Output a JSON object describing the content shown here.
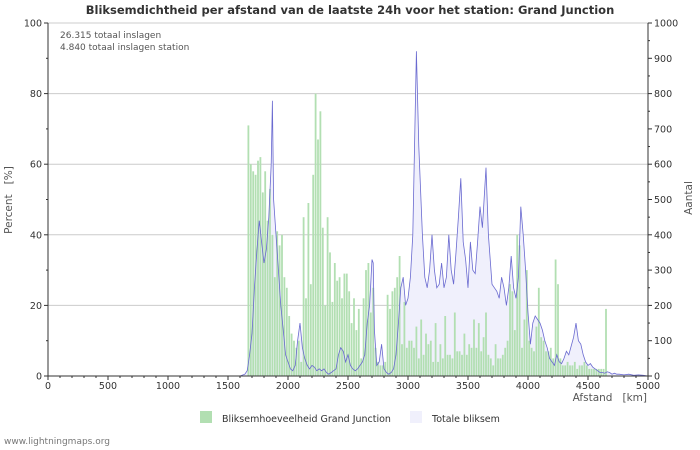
{
  "chart_data": {
    "type": "bar+area",
    "title": "Bliksemdichtheid per afstand van de laatste 24h voor het station: Grand Junction",
    "annotations": [
      "26.315 totaal inslagen",
      "4.840 totaal inslagen station"
    ],
    "xlabel": "Afstand   [km]",
    "ylabel_left": "Percent   [%]",
    "ylabel_right": "Aantal",
    "xlim": [
      0,
      5000
    ],
    "ylim_left": [
      0,
      100
    ],
    "ylim_right": [
      0,
      1000
    ],
    "x_ticks": [
      "0",
      "500",
      "1000",
      "1500",
      "2000",
      "2500",
      "3000",
      "3500",
      "4000",
      "4500",
      "5000"
    ],
    "y_ticks_left": [
      "0",
      "20",
      "40",
      "60",
      "80",
      "100"
    ],
    "y_ticks_right": [
      "0",
      "100",
      "200",
      "300",
      "400",
      "500",
      "600",
      "700",
      "800",
      "900",
      "1000"
    ],
    "grid": true,
    "legend_position": "bottom",
    "colors": {
      "bars": "#b2dfb2",
      "area_fill": "#f0f0fc",
      "area_line": "#6a6ad0",
      "grid": "#cccccc",
      "axis": "#333333"
    },
    "series": [
      {
        "name": "Bliksemhoeveelheid Grand Junction",
        "type": "bar",
        "axis": "left",
        "bin_width_km": 20,
        "x_start": 1660,
        "values": [
          71,
          60,
          58,
          57,
          61,
          62,
          52,
          58,
          44,
          53,
          40,
          28,
          41,
          37,
          40,
          28,
          25,
          17,
          12,
          10,
          8,
          10,
          4,
          45,
          22,
          49,
          26,
          57,
          80,
          67,
          75,
          42,
          20,
          45,
          35,
          21,
          32,
          27,
          28,
          22,
          29,
          29,
          24,
          15,
          22,
          13,
          19,
          5,
          22,
          30,
          32,
          18,
          25,
          8,
          4,
          3,
          3,
          4,
          23,
          19,
          24,
          25,
          28,
          34,
          9,
          21,
          8,
          10,
          10,
          8,
          14,
          5,
          16,
          6,
          12,
          9,
          10,
          4,
          15,
          4,
          9,
          5,
          17,
          6,
          6,
          5,
          18,
          7,
          7,
          6,
          12,
          6,
          9,
          8,
          16,
          8,
          15,
          7,
          11,
          18,
          6,
          5,
          3,
          9,
          5,
          5,
          6,
          8,
          10,
          26,
          24,
          13,
          40,
          37,
          8,
          16,
          30,
          10,
          8,
          7,
          14,
          25,
          11,
          10,
          7,
          7,
          8,
          5,
          33,
          26,
          5,
          3,
          3,
          4,
          3,
          3,
          4,
          2,
          3,
          3,
          4,
          3,
          2,
          2,
          2,
          2,
          2,
          2,
          2,
          19
        ],
        "value_unit": "%"
      },
      {
        "name": "Totale bliksem",
        "type": "area",
        "axis": "right",
        "points": [
          [
            1600,
            0
          ],
          [
            1640,
            5
          ],
          [
            1660,
            15
          ],
          [
            1680,
            60
          ],
          [
            1700,
            120
          ],
          [
            1720,
            250
          ],
          [
            1740,
            350
          ],
          [
            1760,
            440
          ],
          [
            1780,
            380
          ],
          [
            1800,
            320
          ],
          [
            1820,
            360
          ],
          [
            1840,
            450
          ],
          [
            1860,
            600
          ],
          [
            1870,
            780
          ],
          [
            1880,
            500
          ],
          [
            1900,
            400
          ],
          [
            1920,
            300
          ],
          [
            1940,
            200
          ],
          [
            1960,
            130
          ],
          [
            1980,
            60
          ],
          [
            2000,
            40
          ],
          [
            2020,
            20
          ],
          [
            2040,
            15
          ],
          [
            2060,
            30
          ],
          [
            2080,
            100
          ],
          [
            2100,
            150
          ],
          [
            2120,
            80
          ],
          [
            2140,
            50
          ],
          [
            2160,
            30
          ],
          [
            2180,
            20
          ],
          [
            2200,
            30
          ],
          [
            2220,
            25
          ],
          [
            2240,
            15
          ],
          [
            2260,
            20
          ],
          [
            2280,
            15
          ],
          [
            2300,
            20
          ],
          [
            2320,
            10
          ],
          [
            2340,
            5
          ],
          [
            2360,
            10
          ],
          [
            2380,
            15
          ],
          [
            2400,
            20
          ],
          [
            2420,
            60
          ],
          [
            2440,
            80
          ],
          [
            2460,
            70
          ],
          [
            2480,
            40
          ],
          [
            2500,
            60
          ],
          [
            2520,
            30
          ],
          [
            2540,
            20
          ],
          [
            2560,
            15
          ],
          [
            2580,
            20
          ],
          [
            2600,
            30
          ],
          [
            2620,
            40
          ],
          [
            2640,
            60
          ],
          [
            2660,
            150
          ],
          [
            2680,
            200
          ],
          [
            2700,
            330
          ],
          [
            2710,
            320
          ],
          [
            2720,
            130
          ],
          [
            2740,
            30
          ],
          [
            2760,
            40
          ],
          [
            2780,
            90
          ],
          [
            2800,
            20
          ],
          [
            2820,
            10
          ],
          [
            2840,
            5
          ],
          [
            2860,
            10
          ],
          [
            2880,
            20
          ],
          [
            2900,
            60
          ],
          [
            2920,
            150
          ],
          [
            2940,
            250
          ],
          [
            2960,
            280
          ],
          [
            2980,
            200
          ],
          [
            3000,
            220
          ],
          [
            3020,
            280
          ],
          [
            3040,
            400
          ],
          [
            3070,
            920
          ],
          [
            3090,
            650
          ],
          [
            3120,
            400
          ],
          [
            3140,
            280
          ],
          [
            3160,
            250
          ],
          [
            3180,
            300
          ],
          [
            3200,
            400
          ],
          [
            3220,
            300
          ],
          [
            3240,
            250
          ],
          [
            3260,
            260
          ],
          [
            3280,
            320
          ],
          [
            3300,
            250
          ],
          [
            3320,
            280
          ],
          [
            3340,
            400
          ],
          [
            3360,
            300
          ],
          [
            3380,
            260
          ],
          [
            3400,
            350
          ],
          [
            3420,
            450
          ],
          [
            3440,
            560
          ],
          [
            3460,
            380
          ],
          [
            3480,
            330
          ],
          [
            3500,
            250
          ],
          [
            3520,
            380
          ],
          [
            3540,
            300
          ],
          [
            3560,
            290
          ],
          [
            3580,
            380
          ],
          [
            3600,
            480
          ],
          [
            3620,
            420
          ],
          [
            3650,
            590
          ],
          [
            3670,
            400
          ],
          [
            3700,
            260
          ],
          [
            3720,
            250
          ],
          [
            3740,
            240
          ],
          [
            3760,
            220
          ],
          [
            3780,
            280
          ],
          [
            3800,
            250
          ],
          [
            3820,
            200
          ],
          [
            3840,
            250
          ],
          [
            3860,
            340
          ],
          [
            3880,
            250
          ],
          [
            3900,
            220
          ],
          [
            3920,
            280
          ],
          [
            3940,
            480
          ],
          [
            3960,
            400
          ],
          [
            3980,
            300
          ],
          [
            4000,
            180
          ],
          [
            4020,
            90
          ],
          [
            4040,
            150
          ],
          [
            4060,
            170
          ],
          [
            4080,
            160
          ],
          [
            4100,
            150
          ],
          [
            4120,
            130
          ],
          [
            4140,
            100
          ],
          [
            4160,
            80
          ],
          [
            4180,
            50
          ],
          [
            4200,
            40
          ],
          [
            4220,
            30
          ],
          [
            4240,
            60
          ],
          [
            4260,
            40
          ],
          [
            4280,
            35
          ],
          [
            4300,
            50
          ],
          [
            4320,
            70
          ],
          [
            4340,
            60
          ],
          [
            4360,
            85
          ],
          [
            4380,
            110
          ],
          [
            4400,
            150
          ],
          [
            4420,
            100
          ],
          [
            4440,
            90
          ],
          [
            4460,
            60
          ],
          [
            4480,
            40
          ],
          [
            4500,
            30
          ],
          [
            4520,
            35
          ],
          [
            4540,
            25
          ],
          [
            4560,
            20
          ],
          [
            4580,
            15
          ],
          [
            4600,
            10
          ],
          [
            4620,
            10
          ],
          [
            4640,
            8
          ],
          [
            4660,
            12
          ],
          [
            4680,
            10
          ],
          [
            4700,
            5
          ],
          [
            4720,
            8
          ],
          [
            4740,
            5
          ],
          [
            4760,
            5
          ],
          [
            4800,
            3
          ],
          [
            4840,
            5
          ],
          [
            4880,
            2
          ],
          [
            4920,
            3
          ],
          [
            4960,
            2
          ],
          [
            5000,
            0
          ]
        ]
      }
    ]
  },
  "legend": {
    "bars_label": "Bliksemhoeveelheid Grand Junction",
    "area_label": "Totale bliksem"
  },
  "footer": {
    "site": "www.lightningmaps.org"
  }
}
